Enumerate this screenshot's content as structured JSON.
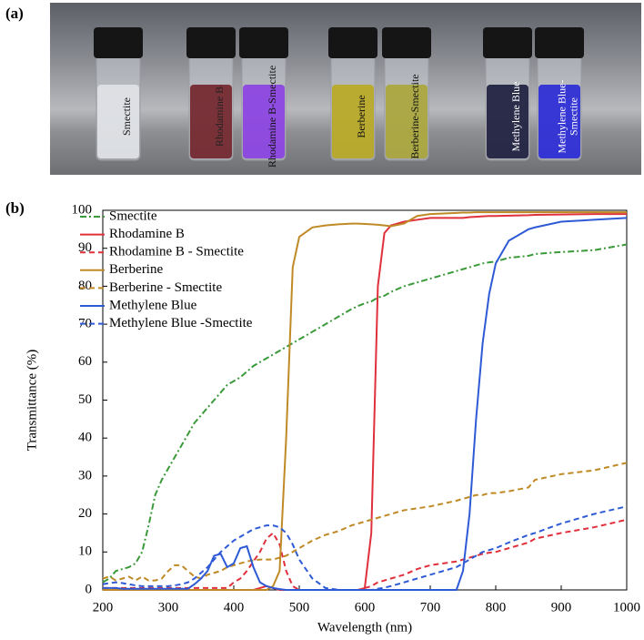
{
  "panel_labels": {
    "a": "(a)",
    "b": "(b)"
  },
  "photo": {
    "vials": [
      {
        "label_lines": [
          "Smectite"
        ]
      },
      {
        "label_lines": [
          "Rhodamine B"
        ]
      },
      {
        "label_lines": [
          "Rhodamine B-Smectite"
        ]
      },
      {
        "label_lines": [
          "Berberine"
        ]
      },
      {
        "label_lines": [
          "Berberine-Smectite"
        ]
      },
      {
        "label_lines": [
          "Methylene Blue"
        ]
      },
      {
        "label_lines": [
          "Methylene Blue-",
          "Smectite"
        ]
      }
    ]
  },
  "chart_data": {
    "type": "line",
    "x_label": "Wavelength  (nm)",
    "y_label": "Transmittance  (%)",
    "xlim": [
      200,
      1000
    ],
    "xticks": [
      200,
      300,
      400,
      500,
      600,
      700,
      800,
      900,
      1000
    ],
    "ylim": [
      0,
      100
    ],
    "yticks": [
      0,
      10,
      20,
      30,
      40,
      50,
      60,
      70,
      80,
      90,
      100
    ],
    "grid": false,
    "legend": "upper-left",
    "x": [
      200,
      210,
      220,
      230,
      240,
      250,
      260,
      270,
      280,
      290,
      300,
      310,
      320,
      330,
      340,
      350,
      360,
      370,
      380,
      390,
      400,
      410,
      420,
      430,
      440,
      450,
      460,
      470,
      480,
      490,
      500,
      520,
      540,
      560,
      580,
      590,
      600,
      610,
      620,
      630,
      640,
      660,
      680,
      700,
      740,
      750,
      760,
      770,
      780,
      790,
      800,
      820,
      850,
      860,
      900,
      950,
      1000
    ],
    "series": [
      {
        "name": "Smectite",
        "color": "#3a9a3a",
        "style": "dashdot",
        "values": [
          2,
          3,
          5,
          5.5,
          6,
          7,
          10,
          17,
          25,
          29,
          32,
          35,
          38,
          41,
          44,
          46,
          48,
          50,
          52,
          54,
          55,
          56,
          57.5,
          59,
          60,
          61,
          62,
          63,
          64,
          65,
          66,
          68,
          70,
          72,
          74,
          74.8,
          75.5,
          76,
          77,
          77.5,
          78.5,
          80,
          81,
          82,
          84,
          84.5,
          85,
          85.5,
          86,
          86.3,
          86.5,
          87.5,
          88,
          88.5,
          89,
          89.5,
          91
        ]
      },
      {
        "name": "Rhodamine B",
        "color": "#e0303c",
        "style": "solid",
        "values": [
          0,
          0,
          0,
          0,
          0,
          0,
          0,
          0,
          0,
          0,
          0,
          0,
          0,
          0,
          0,
          0,
          0,
          0,
          0,
          0,
          0,
          0,
          0,
          0,
          0.5,
          1,
          0.5,
          0,
          0,
          0,
          0,
          0,
          0,
          0,
          0,
          0,
          0.5,
          15,
          80,
          94,
          96,
          97,
          97.5,
          98,
          98,
          98,
          98.2,
          98.3,
          98.4,
          98.5,
          98.5,
          98.6,
          98.7,
          98.8,
          98.9,
          99,
          99
        ]
      },
      {
        "name": "Rhodamine B - Smectite",
        "color": "#e0303c",
        "style": "dashed",
        "values": [
          0.5,
          0.5,
          0.5,
          0.5,
          0.5,
          0.5,
          0.5,
          0.5,
          0.5,
          0.5,
          0.5,
          0.5,
          0.5,
          0.5,
          0.5,
          0.5,
          0.5,
          0.5,
          0.5,
          0.5,
          2,
          3,
          5,
          7.5,
          10,
          13.5,
          15,
          12,
          5,
          1,
          0,
          0,
          0,
          0,
          0,
          0,
          0.5,
          1,
          2,
          2.5,
          3,
          4,
          5.5,
          6.5,
          7.5,
          8,
          8.5,
          9,
          9.5,
          9.8,
          10,
          11,
          12.5,
          13.5,
          15,
          16.5,
          18.5
        ]
      },
      {
        "name": "Berberine",
        "color": "#bf8a25",
        "style": "solid",
        "values": [
          0,
          0,
          0,
          0,
          0,
          0,
          0,
          0,
          0,
          0,
          0,
          0,
          0,
          0,
          0,
          0,
          0,
          0,
          0,
          0,
          0,
          0,
          0,
          0,
          0,
          0,
          1,
          5,
          40,
          85,
          93,
          95.5,
          96,
          96.3,
          96.5,
          96.5,
          96.4,
          96.3,
          96.2,
          96,
          95.8,
          96.5,
          98.5,
          99,
          99.3,
          99.4,
          99.4,
          99.5,
          99.5,
          99.5,
          99.5,
          99.5,
          99.5,
          99.5,
          99.5,
          99.5,
          99.5
        ]
      },
      {
        "name": "Berberine - Smectite",
        "color": "#bf8a25",
        "style": "dashed",
        "values": [
          3,
          3.5,
          2.5,
          3,
          3.5,
          2.5,
          3.5,
          2.5,
          2.5,
          3,
          5,
          6.5,
          6.5,
          5,
          3.5,
          3,
          4,
          4.5,
          5,
          6,
          6.5,
          7,
          7.5,
          7.8,
          8,
          8,
          8,
          8.5,
          9,
          10,
          11,
          13,
          14.5,
          15.5,
          17,
          17.5,
          18,
          18.5,
          19,
          19.5,
          20,
          21,
          21.5,
          22,
          23.5,
          24,
          24.5,
          25,
          25,
          25.5,
          25.5,
          26,
          27,
          29,
          30.5,
          31.5,
          33.5
        ]
      },
      {
        "name": "Methylene Blue",
        "color": "#2e5ad6",
        "style": "solid",
        "values": [
          0.5,
          0.5,
          0.5,
          0.3,
          0.3,
          0.3,
          0.3,
          0.3,
          0.3,
          0.3,
          0.3,
          0.3,
          0.3,
          0.3,
          1.5,
          3,
          5,
          9,
          9.5,
          6,
          7,
          11,
          11.5,
          6,
          2,
          1,
          0.5,
          0.2,
          0,
          0,
          0,
          0,
          0,
          0,
          0,
          0,
          0,
          0,
          0,
          0,
          0,
          0,
          0,
          0,
          0,
          5,
          20,
          45,
          65,
          78,
          86,
          92,
          95,
          95.5,
          97,
          97.5,
          98
        ]
      },
      {
        "name": "Methylene Blue -Smectite",
        "color": "#2e5ad6",
        "style": "dashed",
        "values": [
          1.5,
          1.8,
          2,
          1.8,
          1.5,
          1.2,
          1,
          1,
          1,
          1,
          1,
          1.2,
          1.5,
          2,
          3,
          4.5,
          6,
          8,
          10,
          11.5,
          13,
          14,
          15,
          16,
          16.5,
          17,
          17,
          16.5,
          15,
          12,
          8,
          3,
          0.5,
          0,
          0,
          0,
          0,
          0,
          0.3,
          0.6,
          1,
          2,
          3,
          4,
          6,
          7,
          8,
          9,
          10,
          10.5,
          11,
          12.5,
          14.5,
          15,
          17.5,
          20,
          22
        ]
      }
    ]
  }
}
